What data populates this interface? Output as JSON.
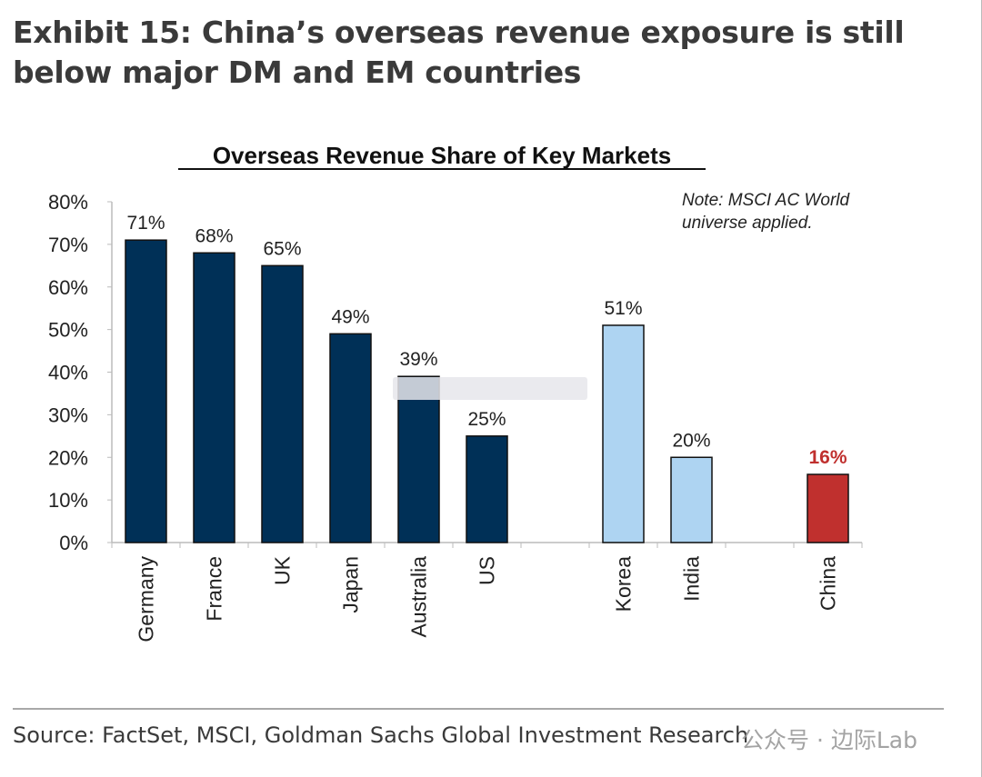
{
  "exhibit_title_line1": "Exhibit 15: China’s overseas revenue exposure is still",
  "exhibit_title_line2": "below major DM and EM countries",
  "source": "Source: FactSet, MSCI, Goldman Sachs Global Investment Research",
  "watermark": "公众号 · 边际Lab",
  "colors": {
    "dm": "#003057",
    "em": "#aed4f2",
    "china": "#c0302e",
    "china_label": "#c0302e"
  },
  "chart_data": {
    "type": "bar",
    "title": "Overseas Revenue Share of Key Markets",
    "note_line1": "Note: MSCI AC World",
    "note_line2": "universe applied.",
    "categories": [
      "Germany",
      "France",
      "UK",
      "Japan",
      "Australia",
      "US",
      "Korea",
      "India",
      "China"
    ],
    "values": [
      71,
      68,
      65,
      49,
      39,
      25,
      51,
      20,
      16
    ],
    "data_labels": [
      "71%",
      "68%",
      "65%",
      "49%",
      "39%",
      "25%",
      "51%",
      "20%",
      "16%"
    ],
    "bar_groups": [
      "dm",
      "dm",
      "dm",
      "dm",
      "dm",
      "dm",
      "em",
      "em",
      "china"
    ],
    "ylim": [
      0,
      80
    ],
    "yticks": [
      "0%",
      "10%",
      "20%",
      "30%",
      "40%",
      "50%",
      "60%",
      "70%",
      "80%"
    ],
    "grid": false,
    "xlabel": "",
    "ylabel": ""
  }
}
